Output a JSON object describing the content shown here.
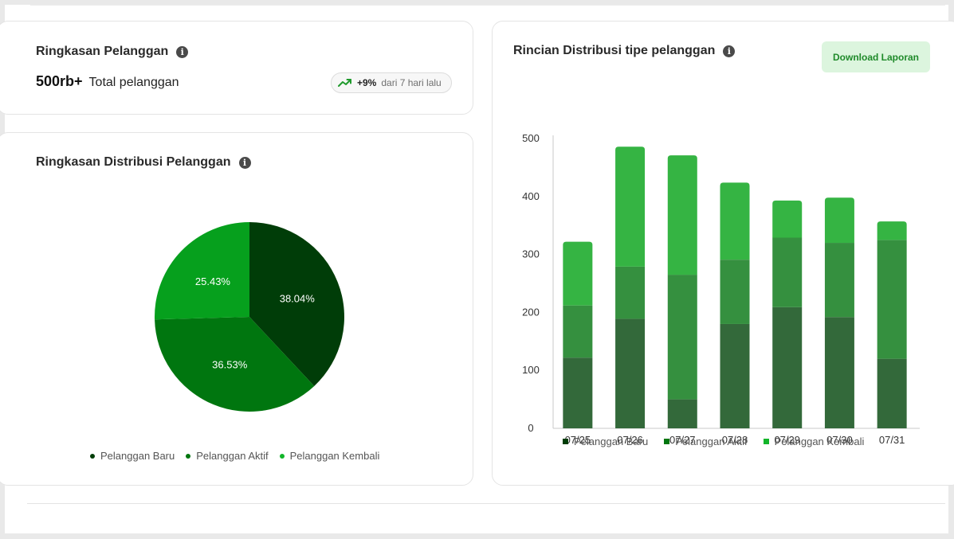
{
  "summary": {
    "title": "Ringkasan Pelanggan",
    "total_value": "500rb+",
    "total_label": "Total pelanggan",
    "trend_pct": "+9%",
    "trend_period": "dari 7 hari lalu",
    "trend_icon": "trending-up-icon",
    "info_icon": "info-icon"
  },
  "pie_card": {
    "title": "Ringkasan Distribusi Pelanggan"
  },
  "bar_card": {
    "title": "Rincian Distribusi tipe pelanggan",
    "download_label": "Download Laporan"
  },
  "legend": [
    {
      "label": "Pelanggan Baru"
    },
    {
      "label": "Pelanggan Aktif"
    },
    {
      "label": "Pelanggan Kembali"
    }
  ],
  "colors": {
    "pie_baru": "#003d08",
    "pie_aktif": "#00760f",
    "pie_kembali": "#06a01d",
    "bar_baru": "#33693a",
    "bar_aktif": "#35903f",
    "bar_kembali": "#35b443",
    "accent_green": "#1f8a2a",
    "button_bg": "#dcf5de"
  },
  "chart_data": [
    {
      "type": "pie",
      "labels": [
        "Pelanggan Baru",
        "Pelanggan Aktif",
        "Pelanggan Kembali"
      ],
      "values": [
        38.04,
        36.53,
        25.43
      ],
      "value_labels": [
        "38.04%",
        "36.53%",
        "25.43%"
      ]
    },
    {
      "type": "bar",
      "stacked": true,
      "categories": [
        "07/25",
        "07/26",
        "07/27",
        "07/28",
        "07/29",
        "07/30",
        "07/31"
      ],
      "series": [
        {
          "name": "Pelanggan Baru",
          "values": [
            122,
            189,
            50,
            180,
            209,
            192,
            120
          ]
        },
        {
          "name": "Pelanggan Aktif",
          "values": [
            90,
            90,
            215,
            111,
            120,
            128,
            205
          ]
        },
        {
          "name": "Pelanggan Kembali",
          "values": [
            110,
            207,
            206,
            133,
            64,
            78,
            32
          ]
        }
      ],
      "ylim": [
        0,
        500
      ],
      "yticks": [
        "0",
        "100",
        "200",
        "300",
        "400",
        "500"
      ],
      "grid": false,
      "legend_position": "bottom"
    }
  ]
}
